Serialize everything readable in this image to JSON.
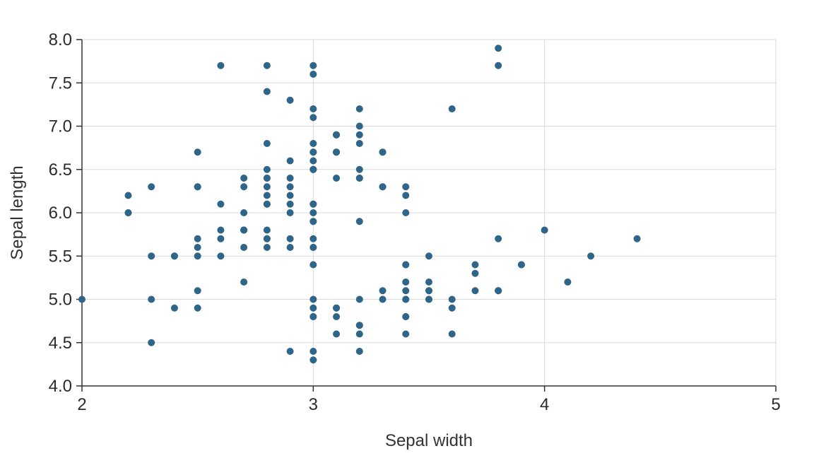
{
  "chart_data": {
    "type": "scatter",
    "title": "",
    "xlabel": "Sepal width",
    "ylabel": "Sepal length",
    "xlim": [
      2,
      5
    ],
    "ylim": [
      4.0,
      8.0
    ],
    "x_ticks": [
      2,
      3,
      4,
      5
    ],
    "x_tick_labels": [
      "2",
      "3",
      "4",
      "5"
    ],
    "y_ticks": [
      4.0,
      4.5,
      5.0,
      5.5,
      6.0,
      6.5,
      7.0,
      7.5,
      8.0
    ],
    "y_tick_labels": [
      "4.0",
      "4.5",
      "5.0",
      "5.5",
      "6.0",
      "6.5",
      "7.0",
      "7.5",
      "8.0"
    ],
    "grid": true,
    "legend": "none",
    "point_color": "#2e6588",
    "series": [
      {
        "points": [
          [
            3.5,
            5.1
          ],
          [
            3.0,
            4.9
          ],
          [
            3.2,
            4.7
          ],
          [
            3.1,
            4.6
          ],
          [
            3.6,
            5.0
          ],
          [
            3.9,
            5.4
          ],
          [
            3.4,
            4.6
          ],
          [
            3.4,
            5.0
          ],
          [
            2.9,
            4.4
          ],
          [
            3.1,
            4.9
          ],
          [
            3.7,
            5.4
          ],
          [
            3.4,
            4.8
          ],
          [
            3.0,
            4.8
          ],
          [
            3.0,
            4.3
          ],
          [
            4.0,
            5.8
          ],
          [
            4.4,
            5.7
          ],
          [
            3.9,
            5.4
          ],
          [
            3.5,
            5.1
          ],
          [
            3.8,
            5.7
          ],
          [
            3.8,
            5.1
          ],
          [
            3.4,
            5.4
          ],
          [
            3.7,
            5.1
          ],
          [
            3.6,
            4.6
          ],
          [
            3.3,
            5.1
          ],
          [
            3.4,
            4.8
          ],
          [
            3.0,
            5.0
          ],
          [
            3.4,
            5.0
          ],
          [
            3.5,
            5.2
          ],
          [
            3.4,
            5.2
          ],
          [
            3.2,
            4.7
          ],
          [
            3.1,
            4.8
          ],
          [
            3.4,
            5.4
          ],
          [
            4.1,
            5.2
          ],
          [
            4.2,
            5.5
          ],
          [
            3.1,
            4.9
          ],
          [
            3.2,
            5.0
          ],
          [
            3.5,
            5.5
          ],
          [
            3.6,
            4.9
          ],
          [
            3.0,
            4.4
          ],
          [
            3.4,
            5.1
          ],
          [
            3.5,
            5.0
          ],
          [
            2.3,
            4.5
          ],
          [
            3.2,
            4.4
          ],
          [
            3.5,
            5.0
          ],
          [
            3.8,
            5.1
          ],
          [
            3.0,
            4.8
          ],
          [
            3.8,
            5.1
          ],
          [
            3.2,
            4.6
          ],
          [
            3.7,
            5.3
          ],
          [
            3.3,
            5.0
          ],
          [
            3.2,
            7.0
          ],
          [
            3.2,
            6.4
          ],
          [
            3.1,
            6.9
          ],
          [
            2.3,
            5.5
          ],
          [
            2.8,
            6.5
          ],
          [
            2.8,
            5.7
          ],
          [
            3.3,
            6.3
          ],
          [
            2.4,
            4.9
          ],
          [
            2.9,
            6.6
          ],
          [
            2.7,
            5.2
          ],
          [
            2.0,
            5.0
          ],
          [
            3.0,
            5.9
          ],
          [
            2.2,
            6.0
          ],
          [
            2.9,
            6.1
          ],
          [
            2.9,
            5.6
          ],
          [
            3.1,
            6.7
          ],
          [
            3.0,
            5.6
          ],
          [
            2.7,
            5.8
          ],
          [
            2.2,
            6.2
          ],
          [
            2.5,
            5.6
          ],
          [
            3.2,
            5.9
          ],
          [
            2.8,
            6.1
          ],
          [
            2.5,
            6.3
          ],
          [
            2.8,
            6.1
          ],
          [
            2.9,
            6.4
          ],
          [
            3.0,
            6.6
          ],
          [
            2.8,
            6.8
          ],
          [
            3.0,
            6.7
          ],
          [
            2.9,
            6.0
          ],
          [
            2.6,
            5.7
          ],
          [
            2.4,
            5.5
          ],
          [
            2.4,
            5.5
          ],
          [
            2.7,
            5.8
          ],
          [
            2.7,
            6.0
          ],
          [
            3.0,
            5.4
          ],
          [
            3.4,
            6.0
          ],
          [
            3.1,
            6.7
          ],
          [
            2.3,
            6.3
          ],
          [
            3.0,
            5.6
          ],
          [
            2.5,
            5.5
          ],
          [
            2.6,
            5.5
          ],
          [
            3.0,
            6.1
          ],
          [
            2.6,
            5.8
          ],
          [
            2.3,
            5.0
          ],
          [
            2.7,
            5.6
          ],
          [
            3.0,
            5.7
          ],
          [
            2.9,
            5.7
          ],
          [
            2.9,
            6.2
          ],
          [
            2.5,
            5.1
          ],
          [
            2.8,
            5.7
          ],
          [
            3.3,
            6.3
          ],
          [
            2.7,
            5.8
          ],
          [
            3.0,
            7.1
          ],
          [
            2.9,
            6.3
          ],
          [
            3.0,
            6.5
          ],
          [
            3.0,
            7.6
          ],
          [
            2.5,
            4.9
          ],
          [
            2.9,
            7.3
          ],
          [
            2.5,
            6.7
          ],
          [
            3.6,
            7.2
          ],
          [
            3.2,
            6.5
          ],
          [
            2.7,
            6.4
          ],
          [
            3.0,
            6.8
          ],
          [
            2.5,
            5.7
          ],
          [
            2.8,
            5.8
          ],
          [
            3.2,
            6.4
          ],
          [
            3.0,
            6.5
          ],
          [
            3.8,
            7.7
          ],
          [
            2.6,
            7.7
          ],
          [
            2.2,
            6.0
          ],
          [
            3.2,
            6.9
          ],
          [
            2.8,
            5.6
          ],
          [
            2.8,
            7.7
          ],
          [
            2.7,
            6.3
          ],
          [
            3.3,
            6.7
          ],
          [
            3.2,
            7.2
          ],
          [
            2.8,
            6.2
          ],
          [
            3.0,
            6.1
          ],
          [
            2.8,
            6.4
          ],
          [
            3.0,
            7.2
          ],
          [
            2.8,
            7.4
          ],
          [
            3.8,
            7.9
          ],
          [
            2.8,
            6.4
          ],
          [
            2.8,
            6.3
          ],
          [
            2.6,
            6.1
          ],
          [
            3.0,
            7.7
          ],
          [
            3.4,
            6.3
          ],
          [
            3.1,
            6.4
          ],
          [
            3.0,
            6.0
          ],
          [
            3.1,
            6.9
          ],
          [
            3.1,
            6.7
          ],
          [
            3.1,
            6.9
          ],
          [
            2.7,
            5.8
          ],
          [
            3.2,
            6.8
          ],
          [
            3.3,
            6.7
          ],
          [
            3.0,
            6.7
          ],
          [
            2.5,
            6.3
          ],
          [
            3.0,
            6.5
          ],
          [
            3.4,
            6.2
          ],
          [
            3.0,
            5.9
          ]
        ]
      }
    ]
  }
}
